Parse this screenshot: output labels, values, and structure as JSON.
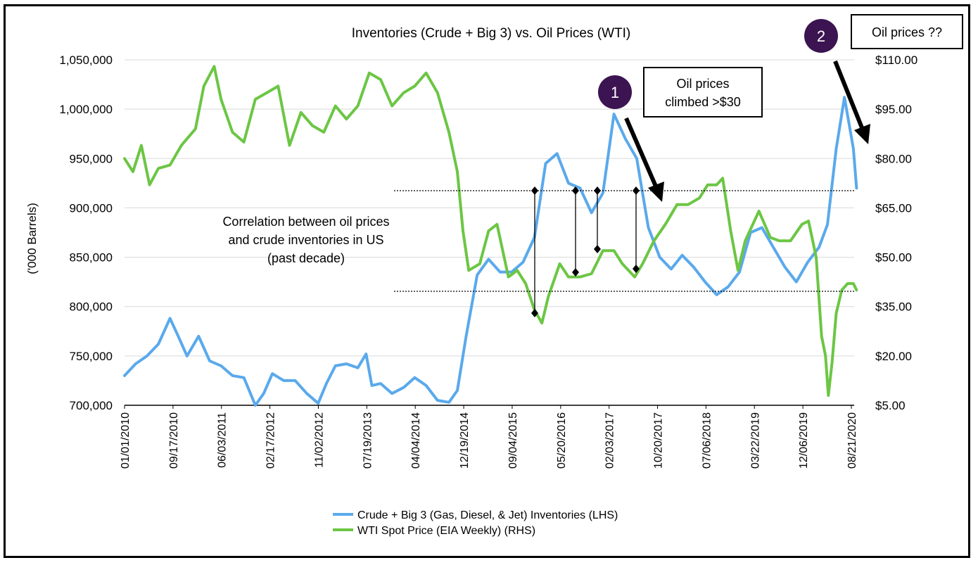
{
  "chart_data": {
    "type": "line",
    "title": "Inventories (Crude + Big 3) vs. Oil Prices (WTI)",
    "ylabel_left": "('000 Barrels)",
    "y_left_lim": [
      700000,
      1050000
    ],
    "y_left_ticks": [
      "700,000",
      "750,000",
      "800,000",
      "850,000",
      "900,000",
      "950,000",
      "1,000,000",
      "1,050,000"
    ],
    "y_right_lim": [
      5,
      110
    ],
    "y_right_ticks": [
      "$5.00",
      "$20.00",
      "$35.00",
      "$50.00",
      "$65.00",
      "$80.00",
      "$95.00",
      "$110.00"
    ],
    "x_ticks": [
      "01/01/2010",
      "09/17/2010",
      "06/03/2011",
      "02/17/2012",
      "11/02/2012",
      "07/19/2013",
      "04/04/2014",
      "12/19/2014",
      "09/04/2015",
      "05/20/2016",
      "02/03/2017",
      "10/20/2017",
      "07/06/2018",
      "03/22/2019",
      "12/06/2019",
      "08/21/2020"
    ],
    "grid": true,
    "legend_position": "bottom",
    "series": [
      {
        "name": "Crude + Big 3 (Gas, Diesel, & Jet) Inventories (LHS)",
        "axis": "left",
        "color": "#5aa9ec",
        "x": [
          "01/01/2010",
          "03/01/2010",
          "05/01/2010",
          "07/01/2010",
          "09/01/2010",
          "10/15/2010",
          "12/01/2010",
          "02/01/2011",
          "04/01/2011",
          "06/01/2011",
          "08/01/2011",
          "10/01/2011",
          "12/01/2011",
          "01/15/2012",
          "03/01/2012",
          "05/01/2012",
          "07/01/2012",
          "09/01/2012",
          "11/01/2012",
          "12/15/2012",
          "02/01/2013",
          "04/01/2013",
          "06/01/2013",
          "07/15/2013",
          "08/15/2013",
          "10/01/2013",
          "12/01/2013",
          "02/01/2014",
          "04/01/2014",
          "06/01/2014",
          "08/01/2014",
          "10/01/2014",
          "11/15/2014",
          "01/01/2015",
          "03/01/2015",
          "05/01/2015",
          "07/01/2015",
          "09/01/2015",
          "11/01/2015",
          "01/01/2016",
          "03/01/2016",
          "05/01/2016",
          "07/01/2016",
          "09/01/2016",
          "11/01/2016",
          "01/01/2017",
          "03/01/2017",
          "05/01/2017",
          "07/01/2017",
          "09/01/2017",
          "11/01/2017",
          "01/01/2018",
          "03/01/2018",
          "05/01/2018",
          "07/01/2018",
          "09/01/2018",
          "11/01/2018",
          "01/01/2019",
          "03/01/2019",
          "05/01/2019",
          "07/01/2019",
          "09/01/2019",
          "11/01/2019",
          "01/01/2020",
          "03/01/2020",
          "04/15/2020",
          "06/01/2020",
          "07/15/2020",
          "09/01/2020",
          "09/18/2020"
        ],
        "values": [
          730000,
          742000,
          750000,
          762000,
          788000,
          770000,
          750000,
          770000,
          745000,
          740000,
          730000,
          728000,
          700000,
          712000,
          732000,
          725000,
          725000,
          712000,
          702000,
          722000,
          740000,
          742000,
          738000,
          752000,
          720000,
          722000,
          712000,
          718000,
          728000,
          720000,
          705000,
          703000,
          715000,
          770000,
          832000,
          848000,
          835000,
          835000,
          845000,
          870000,
          945000,
          955000,
          925000,
          920000,
          895000,
          915000,
          995000,
          970000,
          950000,
          880000,
          850000,
          838000,
          852000,
          840000,
          825000,
          812000,
          820000,
          835000,
          875000,
          880000,
          860000,
          840000,
          825000,
          845000,
          860000,
          883000,
          960000,
          1012000,
          960000,
          920000
        ]
      },
      {
        "name": "WTI Spot Price (EIA Weekly) (RHS)",
        "axis": "right",
        "color": "#6cc644",
        "x": [
          "01/01/2010",
          "02/15/2010",
          "04/01/2010",
          "05/15/2010",
          "07/01/2010",
          "09/01/2010",
          "11/01/2010",
          "01/15/2011",
          "03/01/2011",
          "04/25/2011",
          "06/01/2011",
          "08/01/2011",
          "10/01/2011",
          "12/01/2011",
          "02/01/2012",
          "04/01/2012",
          "06/01/2012",
          "08/01/2012",
          "10/01/2012",
          "12/01/2012",
          "02/01/2013",
          "04/01/2013",
          "06/01/2013",
          "08/01/2013",
          "10/01/2013",
          "12/01/2013",
          "02/01/2014",
          "04/01/2014",
          "06/01/2014",
          "08/01/2014",
          "10/01/2014",
          "11/15/2014",
          "12/15/2014",
          "01/15/2015",
          "03/15/2015",
          "05/01/2015",
          "06/15/2015",
          "08/15/2015",
          "10/01/2015",
          "11/15/2015",
          "01/01/2016",
          "02/10/2016",
          "03/15/2016",
          "05/15/2016",
          "07/01/2016",
          "09/01/2016",
          "11/01/2016",
          "01/01/2017",
          "03/01/2017",
          "04/15/2017",
          "06/20/2017",
          "08/01/2017",
          "10/01/2017",
          "12/01/2017",
          "02/01/2018",
          "04/01/2018",
          "06/01/2018",
          "07/15/2018",
          "09/01/2018",
          "10/03/2018",
          "11/15/2018",
          "12/24/2018",
          "02/01/2019",
          "04/15/2019",
          "06/15/2019",
          "08/01/2019",
          "10/01/2019",
          "12/01/2019",
          "01/05/2020",
          "02/15/2020",
          "03/15/2020",
          "04/05/2020",
          "04/20/2020",
          "05/10/2020",
          "06/01/2020",
          "07/01/2020",
          "08/01/2020",
          "09/01/2020",
          "09/18/2020"
        ],
        "values": [
          80,
          76,
          84,
          72,
          77,
          78,
          84,
          89,
          102,
          108,
          98,
          88,
          85,
          98,
          100,
          102,
          84,
          94,
          90,
          88,
          96,
          92,
          96,
          106,
          104,
          96,
          100,
          102,
          106,
          100,
          88,
          76,
          58,
          46,
          48,
          58,
          60,
          44,
          46,
          42,
          34,
          30,
          38,
          48,
          44,
          44,
          45,
          52,
          52,
          48,
          44,
          48,
          55,
          60,
          66,
          66,
          68,
          72,
          72,
          74,
          58,
          46,
          55,
          64,
          56,
          55,
          55,
          60,
          61,
          50,
          26,
          20,
          8,
          18,
          33,
          40,
          42,
          42,
          40
        ]
      }
    ],
    "annotations": {
      "left_note": [
        "Correlation between oil prices",
        "and crude inventories in US",
        "(past decade)"
      ],
      "marker_1": "1",
      "callout_1": [
        "Oil prices",
        "climbed >$30"
      ],
      "marker_2": "2",
      "callout_2": "Oil prices ??"
    }
  }
}
